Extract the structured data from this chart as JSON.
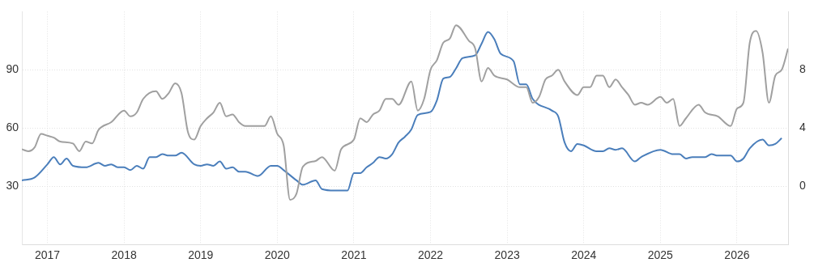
{
  "chart_data": {
    "type": "line",
    "xlim": [
      "2016-09",
      "2026-09"
    ],
    "xticks": [
      "2017",
      "2018",
      "2019",
      "2020",
      "2021",
      "2022",
      "2023",
      "2024",
      "2025",
      "2026"
    ],
    "ylim": [
      0,
      120
    ],
    "yticks": [
      30,
      60,
      90
    ],
    "y2lim": [
      -4,
      12
    ],
    "y2ticks": [
      0,
      4,
      8
    ],
    "grid": true,
    "legend": false,
    "marker": "none",
    "series": [
      {
        "color": "#a0a0a0",
        "x": [
          "2016-09",
          "2016-10",
          "2016-11",
          "2016-12",
          "2017-01",
          "2017-02",
          "2017-03",
          "2017-05",
          "2017-06",
          "2017-07",
          "2017-08",
          "2017-09",
          "2017-11",
          "2018-01",
          "2018-02",
          "2018-03",
          "2018-04",
          "2018-06",
          "2018-07",
          "2018-08",
          "2018-09",
          "2018-10",
          "2018-11",
          "2018-12",
          "2019-01",
          "2019-02",
          "2019-03",
          "2019-04",
          "2019-05",
          "2019-06",
          "2019-07",
          "2019-08",
          "2019-09",
          "2019-11",
          "2019-12",
          "2020-01",
          "2020-02",
          "2020-03",
          "2020-04",
          "2020-05",
          "2020-07",
          "2020-08",
          "2020-10",
          "2020-11",
          "2021-01",
          "2021-02",
          "2021-03",
          "2021-04",
          "2021-05",
          "2021-06",
          "2021-07",
          "2021-08",
          "2021-10",
          "2021-11",
          "2021-12",
          "2022-01",
          "2022-02",
          "2022-03",
          "2022-04",
          "2022-05",
          "2022-07",
          "2022-08",
          "2022-09",
          "2022-10",
          "2022-11",
          "2023-01",
          "2023-03",
          "2023-04",
          "2023-05",
          "2023-06",
          "2023-07",
          "2023-08",
          "2023-09",
          "2023-10",
          "2023-12",
          "2024-01",
          "2024-02",
          "2024-03",
          "2024-04",
          "2024-05",
          "2024-06",
          "2024-07",
          "2024-08",
          "2024-09",
          "2024-10",
          "2024-11",
          "2025-01",
          "2025-02",
          "2025-03",
          "2025-04",
          "2025-05",
          "2025-07",
          "2025-08",
          "2025-10",
          "2025-12",
          "2026-01",
          "2026-02",
          "2026-03",
          "2026-04",
          "2026-05",
          "2026-06",
          "2026-07",
          "2026-08",
          "2026-09"
        ],
        "values": [
          49,
          48,
          50,
          57,
          56,
          55,
          53,
          52,
          48,
          53,
          52,
          59,
          63,
          69,
          66,
          68,
          75,
          79,
          75,
          78,
          83,
          78,
          58,
          54,
          61,
          65,
          68,
          73,
          66,
          67,
          63,
          61,
          61,
          61,
          66,
          57,
          51,
          23,
          26,
          40,
          43,
          45,
          38,
          49,
          54,
          65,
          63,
          67,
          69,
          75,
          75,
          72,
          84,
          69,
          75,
          90,
          95,
          104,
          106,
          113,
          105,
          101,
          84,
          91,
          87,
          85,
          81,
          81,
          73,
          76,
          85,
          87,
          90,
          84,
          77,
          81,
          81,
          87,
          87,
          81,
          85,
          81,
          77,
          72,
          73,
          72,
          76,
          73,
          75,
          61,
          65,
          72,
          68,
          66,
          61,
          70,
          73,
          104,
          110,
          99,
          73,
          87,
          90,
          101
        ]
      },
      {
        "color": "#4a7ebb",
        "axis": "y2",
        "x": [
          "2016-09",
          "2016-11",
          "2017-01",
          "2017-02",
          "2017-03",
          "2017-04",
          "2017-05",
          "2017-07",
          "2017-09",
          "2017-10",
          "2017-11",
          "2017-12",
          "2018-01",
          "2018-02",
          "2018-03",
          "2018-04",
          "2018-05",
          "2018-06",
          "2018-07",
          "2018-08",
          "2018-09",
          "2018-10",
          "2018-12",
          "2019-01",
          "2019-02",
          "2019-03",
          "2019-04",
          "2019-05",
          "2019-06",
          "2019-07",
          "2019-08",
          "2019-10",
          "2019-12",
          "2020-01",
          "2020-02",
          "2020-04",
          "2020-05",
          "2020-07",
          "2020-08",
          "2020-10",
          "2020-12",
          "2021-01",
          "2021-02",
          "2021-03",
          "2021-04",
          "2021-05",
          "2021-06",
          "2021-07",
          "2021-08",
          "2021-09",
          "2021-10",
          "2021-11",
          "2022-01",
          "2022-02",
          "2022-03",
          "2022-04",
          "2022-05",
          "2022-06",
          "2022-08",
          "2022-09",
          "2022-10",
          "2022-11",
          "2022-12",
          "2023-02",
          "2023-03",
          "2023-04",
          "2023-05",
          "2023-08",
          "2023-09",
          "2023-10",
          "2023-11",
          "2023-12",
          "2024-01",
          "2024-03",
          "2024-04",
          "2024-05",
          "2024-06",
          "2024-07",
          "2024-09",
          "2024-10",
          "2025-01",
          "2025-03",
          "2025-04",
          "2025-05",
          "2025-06",
          "2025-08",
          "2025-09",
          "2025-10",
          "2025-12",
          "2026-01",
          "2026-02",
          "2026-03",
          "2026-05",
          "2026-06",
          "2026-07",
          "2026-08"
        ],
        "values": [
          0.4,
          0.6,
          1.5,
          2.0,
          1.5,
          1.9,
          1.4,
          1.3,
          1.6,
          1.4,
          1.5,
          1.3,
          1.3,
          1.1,
          1.4,
          1.2,
          2.0,
          2.0,
          2.2,
          2.1,
          2.1,
          2.3,
          1.5,
          1.4,
          1.5,
          1.4,
          1.7,
          1.2,
          1.3,
          1.0,
          1.0,
          0.7,
          1.4,
          1.4,
          1.1,
          0.4,
          0.1,
          0.4,
          -0.2,
          -0.3,
          -0.3,
          0.9,
          0.9,
          1.3,
          1.6,
          2.0,
          1.9,
          2.2,
          3.0,
          3.4,
          3.9,
          4.9,
          5.1,
          5.9,
          7.4,
          7.5,
          8.1,
          8.8,
          9.0,
          9.8,
          10.6,
          10.1,
          9.1,
          8.6,
          7.0,
          7.0,
          6.0,
          5.2,
          4.8,
          3.0,
          2.4,
          2.9,
          2.8,
          2.4,
          2.4,
          2.6,
          2.5,
          2.6,
          1.7,
          2.0,
          2.5,
          2.2,
          2.2,
          1.9,
          2.0,
          2.0,
          2.2,
          2.1,
          2.1,
          1.7,
          1.9,
          2.6,
          3.2,
          2.8,
          2.9,
          3.3
        ]
      }
    ]
  }
}
